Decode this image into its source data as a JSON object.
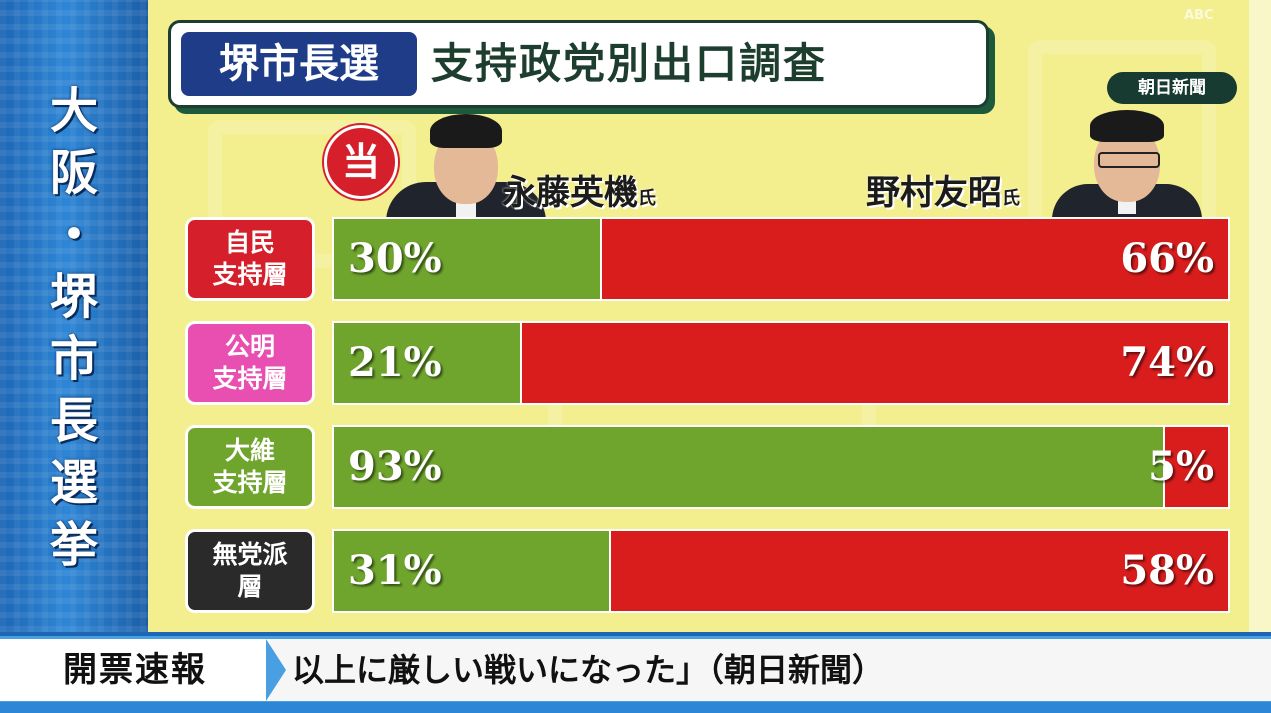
{
  "side_banner": {
    "chars": [
      "大",
      "阪",
      "・",
      "堺",
      "市",
      "長",
      "選",
      "挙"
    ]
  },
  "header": {
    "tag": "堺市長選",
    "title": "支持政党別出口調査",
    "source": "朝日新聞",
    "logo": "ABC"
  },
  "candidates": {
    "winner_mark": "当",
    "left": {
      "name": "永藤英機",
      "suffix": "氏"
    },
    "right": {
      "name": "野村友昭",
      "suffix": "氏"
    }
  },
  "chart_data": {
    "type": "bar",
    "orientation": "horizontal-stacked",
    "categories": [
      "自民\n支持層",
      "公明\n支持層",
      "大維\n支持層",
      "無党派\n層"
    ],
    "series": [
      {
        "name": "永藤英機氏",
        "values": [
          30,
          21,
          93,
          31
        ],
        "color": "#6fa52d"
      },
      {
        "name": "野村友昭氏",
        "values": [
          66,
          74,
          5,
          58
        ],
        "color": "#d91d1d"
      }
    ],
    "labels": {
      "left": [
        "30%",
        "21%",
        "93%",
        "31%"
      ],
      "right": [
        "66%",
        "74%",
        "5%",
        "58%"
      ]
    },
    "xlim": [
      0,
      100
    ],
    "category_colors": [
      "#d51f2a",
      "#e84fb0",
      "#6fa52d",
      "#2a2a2a"
    ]
  },
  "ticker": {
    "label": "開票速報",
    "text": "以上に厳しい戦いになった」（朝日新聞）"
  }
}
